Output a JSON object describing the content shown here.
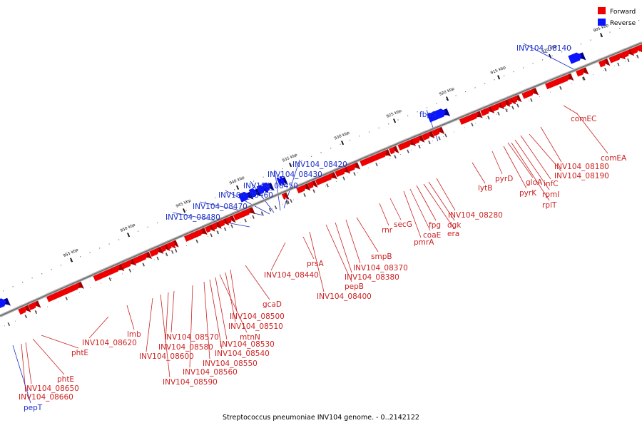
{
  "colors": {
    "forward": "#ee0000",
    "forward_dark": "#a00000",
    "reverse": "#0a14ff",
    "reverse_dark": "#00008a",
    "backbone": "#808080",
    "fwd_label": "#cc2222",
    "rev_label": "#1a2fc8"
  },
  "legend": [
    {
      "label": "Forward",
      "strand": "forward"
    },
    {
      "label": "Reverse",
      "strand": "reverse"
    }
  ],
  "caption": "Streptococcus pneumoniae INV104 genome. - 0..2142122",
  "ticks": [
    "905 kbp",
    "910 kbp",
    "915 kbp",
    "920 kbp",
    "925 kbp",
    "930 kbp",
    "935 kbp",
    "940 kbp",
    "945 kbp",
    "950 kbp",
    "955 kbp"
  ],
  "labels": [
    {
      "text": "INV104_08140",
      "strand": "reverse"
    },
    {
      "text": "comEC",
      "strand": "forward"
    },
    {
      "text": "comEA",
      "strand": "forward"
    },
    {
      "text": "INV104_08180",
      "strand": "forward"
    },
    {
      "text": "INV104_08190",
      "strand": "forward"
    },
    {
      "text": "infC",
      "strand": "forward"
    },
    {
      "text": "rpmI",
      "strand": "forward"
    },
    {
      "text": "rplT",
      "strand": "forward"
    },
    {
      "text": "gloA",
      "strand": "forward"
    },
    {
      "text": "pyrK",
      "strand": "forward"
    },
    {
      "text": "pyrD",
      "strand": "forward"
    },
    {
      "text": "lytB",
      "strand": "forward"
    },
    {
      "text": "fbpS",
      "strand": "reverse"
    },
    {
      "text": "INV104_08280",
      "strand": "forward"
    },
    {
      "text": "dgk",
      "strand": "forward"
    },
    {
      "text": "era",
      "strand": "forward"
    },
    {
      "text": "fpg",
      "strand": "forward"
    },
    {
      "text": "coaE",
      "strand": "forward"
    },
    {
      "text": "pmrA",
      "strand": "forward"
    },
    {
      "text": "secG",
      "strand": "forward"
    },
    {
      "text": "rnr",
      "strand": "forward"
    },
    {
      "text": "smpB",
      "strand": "forward"
    },
    {
      "text": "INV104_08370",
      "strand": "forward"
    },
    {
      "text": "INV104_08380",
      "strand": "forward"
    },
    {
      "text": "pepB",
      "strand": "forward"
    },
    {
      "text": "INV104_08400",
      "strand": "forward"
    },
    {
      "text": "prsA",
      "strand": "forward"
    },
    {
      "text": "INV104_08420",
      "strand": "reverse"
    },
    {
      "text": "INV104_08430",
      "strand": "reverse"
    },
    {
      "text": "INV104_08450",
      "strand": "reverse"
    },
    {
      "text": "INV104_08460",
      "strand": "reverse"
    },
    {
      "text": "INV104_08470",
      "strand": "reverse"
    },
    {
      "text": "INV104_08480",
      "strand": "reverse"
    },
    {
      "text": "INV104_08440",
      "strand": "forward"
    },
    {
      "text": "gcaD",
      "strand": "forward"
    },
    {
      "text": "INV104_08500",
      "strand": "forward"
    },
    {
      "text": "INV104_08510",
      "strand": "forward"
    },
    {
      "text": "mtnN",
      "strand": "forward"
    },
    {
      "text": "INV104_08530",
      "strand": "forward"
    },
    {
      "text": "INV104_08540",
      "strand": "forward"
    },
    {
      "text": "INV104_08550",
      "strand": "forward"
    },
    {
      "text": "INV104_08560",
      "strand": "forward"
    },
    {
      "text": "INV104_08570",
      "strand": "forward"
    },
    {
      "text": "INV104_08580",
      "strand": "forward"
    },
    {
      "text": "INV104_08590",
      "strand": "forward"
    },
    {
      "text": "INV104_08600",
      "strand": "forward"
    },
    {
      "text": "lmb",
      "strand": "forward"
    },
    {
      "text": "INV104_08620",
      "strand": "forward"
    },
    {
      "text": "phtE",
      "strand": "forward"
    },
    {
      "text": "phtE",
      "strand": "forward"
    },
    {
      "text": "INV104_08650",
      "strand": "forward"
    },
    {
      "text": "INV104_08660",
      "strand": "forward"
    },
    {
      "text": "pepT",
      "strand": "reverse"
    }
  ]
}
